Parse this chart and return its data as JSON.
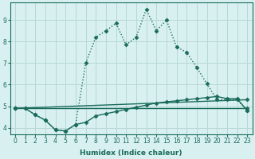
{
  "xlabel": "Humidex (Indice chaleur)",
  "background_color": "#d8f0f0",
  "grid_color": "#b8d8d4",
  "line_color": "#1a6b5a",
  "xlim": [
    -0.5,
    23.5
  ],
  "ylim": [
    3.7,
    9.8
  ],
  "yticks": [
    4,
    5,
    6,
    7,
    8,
    9
  ],
  "xticks": [
    0,
    1,
    2,
    3,
    4,
    5,
    6,
    7,
    8,
    9,
    10,
    11,
    12,
    13,
    14,
    15,
    16,
    17,
    18,
    19,
    20,
    21,
    22,
    23
  ],
  "series": [
    {
      "x": [
        0,
        1,
        2,
        3,
        4,
        5,
        6,
        7,
        8,
        9,
        10,
        11,
        12,
        13,
        14,
        15,
        16,
        17,
        18,
        19,
        20,
        21,
        22,
        23
      ],
      "y": [
        4.9,
        4.9,
        4.6,
        4.35,
        3.9,
        3.85,
        4.15,
        7.0,
        8.2,
        8.5,
        8.85,
        7.85,
        8.2,
        9.5,
        8.5,
        9.0,
        7.75,
        7.5,
        6.8,
        6.05,
        5.3,
        5.3,
        5.3,
        4.8
      ],
      "style": ":",
      "marker": "D",
      "markersize": 2.5,
      "linewidth": 1.0
    },
    {
      "x": [
        0,
        1,
        2,
        3,
        4,
        5,
        6,
        7,
        8,
        9,
        10,
        11,
        12,
        13,
        14,
        15,
        16,
        17,
        18,
        19,
        20,
        21,
        22,
        23
      ],
      "y": [
        4.9,
        4.9,
        4.6,
        4.35,
        3.9,
        3.85,
        4.15,
        4.25,
        4.55,
        4.65,
        4.75,
        4.85,
        4.95,
        5.05,
        5.15,
        5.2,
        5.25,
        5.3,
        5.35,
        5.4,
        5.45,
        5.35,
        5.35,
        4.8
      ],
      "style": "-",
      "marker": "D",
      "markersize": 2.5,
      "linewidth": 1.0
    },
    {
      "x": [
        0,
        23
      ],
      "y": [
        4.9,
        5.3
      ],
      "style": "-",
      "marker": "D",
      "markersize": 2.5,
      "linewidth": 1.0
    },
    {
      "x": [
        0,
        23
      ],
      "y": [
        4.9,
        4.9
      ],
      "style": "-",
      "marker": "D",
      "markersize": 2.5,
      "linewidth": 1.0
    }
  ]
}
